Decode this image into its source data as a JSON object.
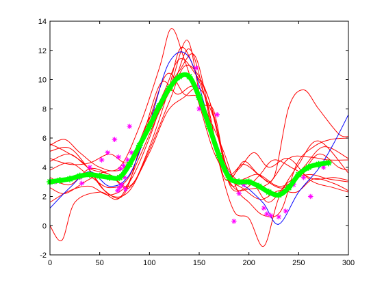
{
  "chart_data": {
    "type": "line",
    "title": "",
    "xlabel": "",
    "ylabel": "",
    "xlim": [
      0,
      300
    ],
    "ylim": [
      -2,
      14
    ],
    "x_ticks": [
      0,
      50,
      100,
      150,
      200,
      250,
      300
    ],
    "y_ticks": [
      -2,
      0,
      2,
      4,
      6,
      8,
      10,
      12,
      14
    ],
    "grid": false,
    "legend": "none",
    "colors": {
      "samples": "#ff0000",
      "true_function": "#0000ff",
      "mean_estimate": "#00ff00",
      "observations": "#ff00ff"
    },
    "series": [
      {
        "role": "true_function",
        "x": [
          0,
          20,
          40,
          60,
          80,
          100,
          120,
          140,
          160,
          180,
          200,
          215,
          230,
          250,
          270,
          285,
          300
        ],
        "values": [
          1.2,
          2.6,
          3.7,
          2.7,
          3.5,
          7.0,
          11.2,
          11.5,
          7.2,
          3.6,
          2.5,
          1.5,
          0.1,
          2.3,
          3.9,
          5.6,
          7.6
        ]
      },
      {
        "role": "mean_estimate",
        "x": [
          0,
          10,
          20,
          30,
          40,
          50,
          60,
          70,
          80,
          90,
          100,
          110,
          120,
          130,
          140,
          150,
          160,
          170,
          180,
          190,
          200,
          210,
          220,
          230,
          240,
          250,
          260,
          270,
          280
        ],
        "values": [
          3.0,
          3.1,
          3.2,
          3.4,
          3.5,
          3.4,
          3.3,
          3.3,
          4.2,
          5.5,
          6.8,
          8.2,
          9.4,
          10.2,
          10.2,
          8.8,
          6.8,
          4.8,
          3.3,
          3.0,
          3.0,
          2.7,
          2.3,
          2.1,
          2.6,
          3.5,
          4.0,
          4.2,
          4.3
        ]
      },
      {
        "role": "sample",
        "x": [
          0,
          15,
          30,
          50,
          70,
          90,
          110,
          122,
          135,
          150,
          165,
          180,
          195,
          215,
          235,
          255,
          275,
          300
        ],
        "values": [
          5.5,
          5.9,
          5.0,
          4.0,
          4.0,
          6.8,
          10.8,
          13.5,
          11.4,
          8.3,
          5.0,
          3.5,
          4.2,
          3.2,
          2.6,
          4.0,
          5.4,
          4.6
        ]
      },
      {
        "role": "sample",
        "x": [
          0,
          12,
          25,
          50,
          70,
          90,
          110,
          125,
          140,
          155,
          170,
          185,
          200,
          215,
          230,
          250,
          270,
          300
        ],
        "values": [
          0.0,
          -1.0,
          1.6,
          2.3,
          1.9,
          4.7,
          7.8,
          9.8,
          12.1,
          9.0,
          4.3,
          1.0,
          0.5,
          -1.4,
          1.9,
          4.2,
          5.8,
          3.6
        ]
      },
      {
        "role": "sample",
        "x": [
          0,
          20,
          40,
          60,
          80,
          100,
          118,
          132,
          148,
          160,
          175,
          190,
          205,
          220,
          240,
          262,
          285,
          300
        ],
        "values": [
          4.4,
          4.9,
          3.9,
          3.5,
          2.6,
          5.4,
          9.0,
          12.2,
          10.2,
          7.8,
          3.3,
          3.9,
          5.0,
          4.0,
          4.6,
          3.1,
          2.6,
          2.3
        ]
      },
      {
        "role": "sample",
        "x": [
          0,
          15,
          35,
          55,
          75,
          95,
          115,
          130,
          145,
          160,
          175,
          190,
          205,
          220,
          240,
          260,
          280,
          300
        ],
        "values": [
          2.6,
          2.2,
          3.0,
          3.7,
          4.0,
          6.3,
          9.2,
          11.4,
          10.5,
          8.6,
          4.5,
          3.0,
          2.8,
          1.6,
          3.0,
          3.5,
          3.2,
          3.0
        ]
      },
      {
        "role": "sample",
        "x": [
          0,
          15,
          35,
          55,
          75,
          95,
          112,
          128,
          145,
          160,
          175,
          188,
          200,
          215,
          232,
          248,
          265,
          282,
          300
        ],
        "values": [
          5.6,
          5.1,
          4.2,
          2.4,
          2.2,
          6.5,
          9.8,
          9.0,
          9.5,
          7.4,
          5.0,
          2.5,
          1.6,
          0.7,
          1.0,
          4.2,
          5.4,
          5.9,
          6.0
        ]
      },
      {
        "role": "sample",
        "x": [
          0,
          20,
          40,
          60,
          80,
          100,
          118,
          135,
          150,
          165,
          180,
          195,
          210,
          225,
          240,
          255,
          270,
          290,
          300
        ],
        "values": [
          3.8,
          4.3,
          3.4,
          2.6,
          3.4,
          7.3,
          10.4,
          9.0,
          8.7,
          6.1,
          3.3,
          4.4,
          3.5,
          3.3,
          8.1,
          9.3,
          8.0,
          6.3,
          6.1
        ]
      },
      {
        "role": "sample",
        "x": [
          0,
          20,
          40,
          60,
          80,
          100,
          115,
          130,
          145,
          158,
          170,
          185,
          200,
          220,
          240,
          260,
          280,
          300
        ],
        "values": [
          1.6,
          2.4,
          2.7,
          2.1,
          3.0,
          6.0,
          8.9,
          10.6,
          11.7,
          8.5,
          4.7,
          2.6,
          2.5,
          2.9,
          4.6,
          4.7,
          4.5,
          4.5
        ]
      },
      {
        "role": "sample",
        "x": [
          0,
          20,
          40,
          60,
          80,
          100,
          120,
          138,
          152,
          165,
          180,
          195,
          210,
          230,
          250,
          270,
          290,
          300
        ],
        "values": [
          4.6,
          4.2,
          4.3,
          4.9,
          4.4,
          7.4,
          9.4,
          12.7,
          8.6,
          7.8,
          3.0,
          3.2,
          3.5,
          2.7,
          3.3,
          4.9,
          4.0,
          3.8
        ]
      },
      {
        "role": "sample",
        "x": [
          0,
          20,
          40,
          60,
          80,
          100,
          118,
          135,
          150,
          165,
          180,
          195,
          212,
          230,
          248,
          265,
          285,
          300
        ],
        "values": [
          3.3,
          2.8,
          3.9,
          3.5,
          2.7,
          5.0,
          7.8,
          8.8,
          9.4,
          7.3,
          3.5,
          2.5,
          1.8,
          2.4,
          2.3,
          3.2,
          2.9,
          2.4
        ]
      },
      {
        "role": "sample",
        "x": [
          0,
          20,
          40,
          60,
          80,
          100,
          120,
          135,
          150,
          165,
          180,
          195,
          210,
          225,
          245,
          265,
          285,
          300
        ],
        "values": [
          5.1,
          5.3,
          3.8,
          2.1,
          2.4,
          5.2,
          8.5,
          10.9,
          10.2,
          7.5,
          2.9,
          2.5,
          3.4,
          4.5,
          3.9,
          3.2,
          3.3,
          3.1
        ]
      }
    ],
    "observations": {
      "x": [
        5,
        30,
        32,
        40,
        52,
        58,
        65,
        68,
        69,
        70,
        71,
        72,
        74,
        75,
        76,
        78,
        80,
        82,
        147,
        148,
        150,
        168,
        185,
        190,
        195,
        215,
        218,
        222,
        230,
        237,
        245,
        255,
        262,
        275
      ],
      "values": [
        3.0,
        3.3,
        2.9,
        4.0,
        4.5,
        5.0,
        5.9,
        2.4,
        4.7,
        2.6,
        3.9,
        2.8,
        4.1,
        3.3,
        2.5,
        4.5,
        6.8,
        5.0,
        10.8,
        9.5,
        8.0,
        7.6,
        0.3,
        2.2,
        2.8,
        1.2,
        0.8,
        0.7,
        0.6,
        1.0,
        2.8,
        3.3,
        2.0,
        4.0
      ]
    }
  }
}
